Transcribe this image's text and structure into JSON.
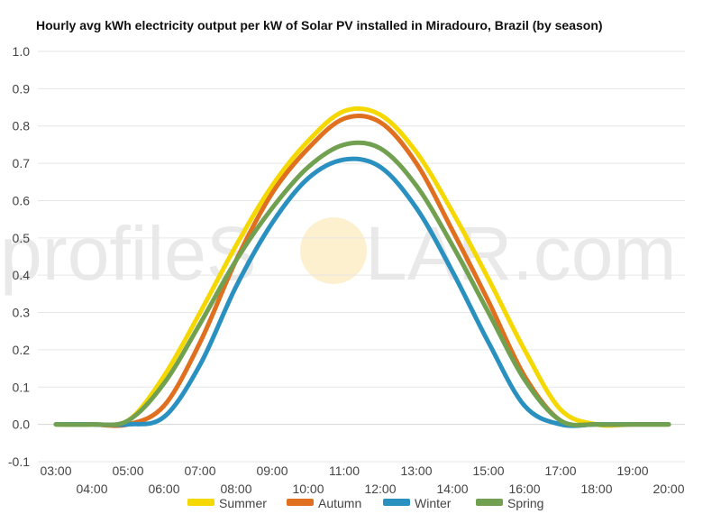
{
  "chart_data": {
    "type": "line",
    "title": "Hourly avg kWh electricity output per kW of Solar PV installed in Miradouro, Brazil (by season)",
    "xlabel": "",
    "ylabel": "",
    "ylim": [
      -0.1,
      1.0
    ],
    "yticks": [
      -0.1,
      0.0,
      0.1,
      0.2,
      0.3,
      0.4,
      0.5,
      0.6,
      0.7,
      0.8,
      0.9,
      1.0
    ],
    "yticks_labels": [
      "-0.1",
      "0.0",
      "0.1",
      "0.2",
      "0.3",
      "0.4",
      "0.5",
      "0.6",
      "0.7",
      "0.8",
      "0.9",
      "1.0"
    ],
    "grid": true,
    "legend_position": "bottom",
    "x": [
      "03:00",
      "04:00",
      "05:00",
      "06:00",
      "07:00",
      "08:00",
      "09:00",
      "10:00",
      "11:00",
      "12:00",
      "13:00",
      "14:00",
      "15:00",
      "16:00",
      "17:00",
      "18:00",
      "19:00",
      "20:00"
    ],
    "series": [
      {
        "name": "Summer",
        "color": "#f5d800",
        "values": [
          0.0,
          0.0,
          0.01,
          0.13,
          0.3,
          0.48,
          0.64,
          0.76,
          0.84,
          0.83,
          0.73,
          0.57,
          0.39,
          0.2,
          0.04,
          0.0,
          0.0,
          0.0
        ]
      },
      {
        "name": "Autumn",
        "color": "#e07020",
        "values": [
          0.0,
          0.0,
          0.0,
          0.05,
          0.22,
          0.44,
          0.62,
          0.74,
          0.82,
          0.81,
          0.7,
          0.52,
          0.33,
          0.13,
          0.01,
          0.0,
          0.0,
          0.0
        ]
      },
      {
        "name": "Winter",
        "color": "#2a90c0",
        "values": [
          0.0,
          0.0,
          0.0,
          0.02,
          0.16,
          0.37,
          0.54,
          0.66,
          0.71,
          0.69,
          0.58,
          0.41,
          0.22,
          0.05,
          0.0,
          0.0,
          0.0,
          0.0
        ]
      },
      {
        "name": "Spring",
        "color": "#70a050",
        "values": [
          0.0,
          0.0,
          0.01,
          0.11,
          0.27,
          0.44,
          0.58,
          0.69,
          0.75,
          0.74,
          0.64,
          0.48,
          0.3,
          0.12,
          0.01,
          0.0,
          0.0,
          0.0
        ]
      }
    ],
    "watermark": {
      "text_left": "profileS",
      "text_right": "LAR.com",
      "sun_color": "#fbe3a8"
    }
  }
}
